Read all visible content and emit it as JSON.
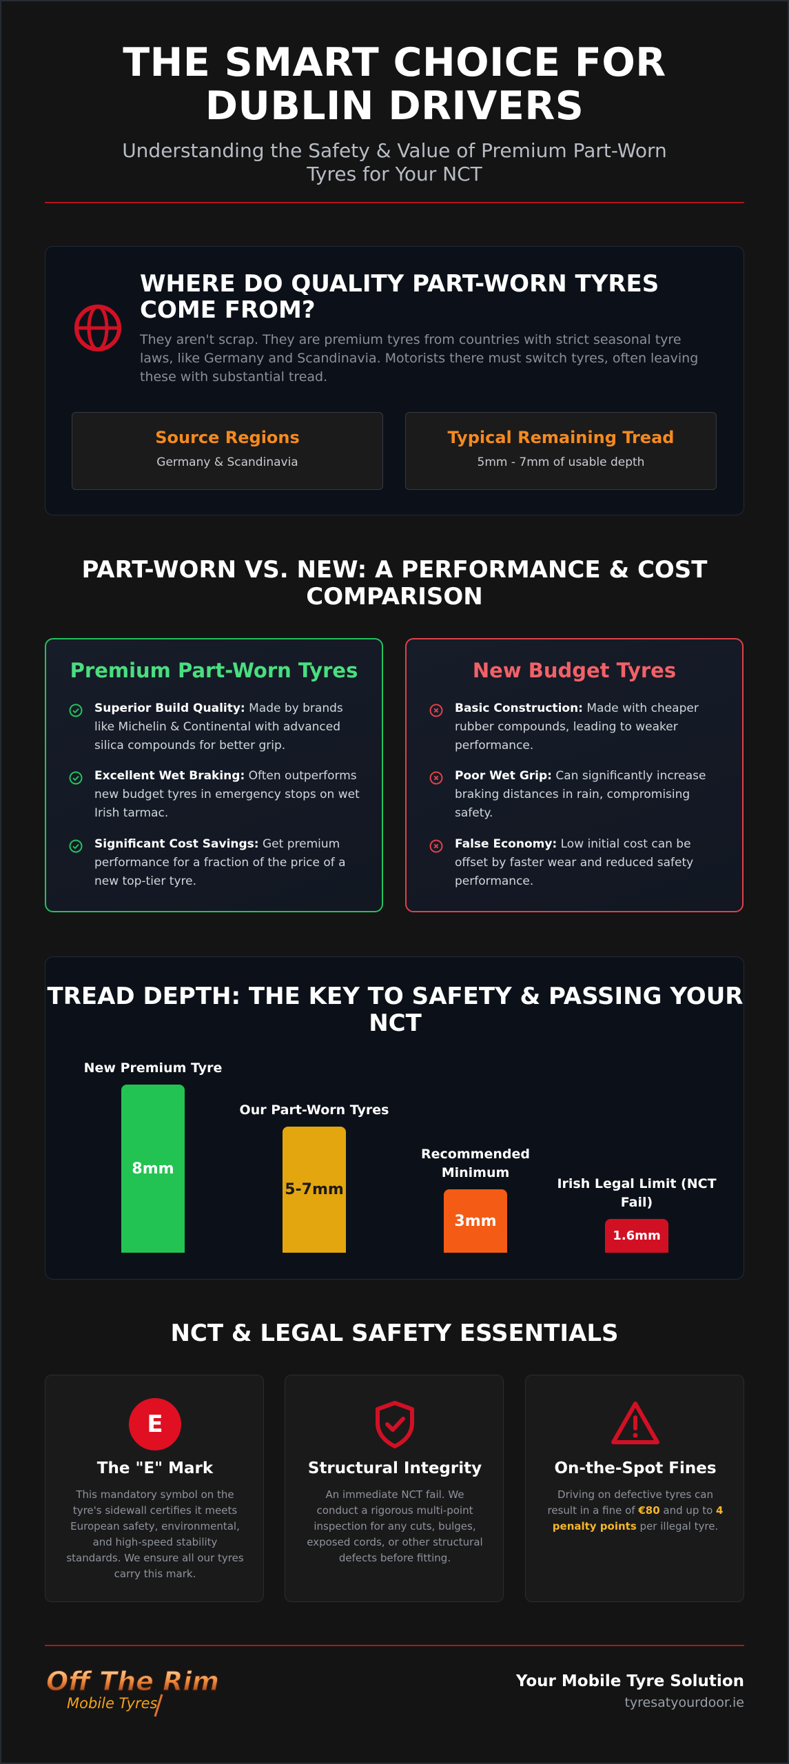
{
  "header": {
    "title": "THE SMART CHOICE FOR DUBLIN DRIVERS",
    "subtitle": "Understanding the Safety & Value of Premium Part-Worn Tyres for Your NCT"
  },
  "source_section": {
    "icon": "globe-icon",
    "title": "WHERE DO QUALITY PART-WORN TYRES COME FROM?",
    "text": "They aren't scrap. They are premium tyres from countries with strict seasonal tyre laws, like Germany and Scandinavia. Motorists there must switch tyres, often leaving these with substantial tread.",
    "stats": [
      {
        "title": "Source Regions",
        "value": "Germany & Scandinavia"
      },
      {
        "title": "Typical Remaining Tread",
        "value": "5mm - 7mm of usable depth"
      }
    ]
  },
  "comparison": {
    "title": "PART-WORN VS. NEW: A PERFORMANCE & COST COMPARISON",
    "part_worn": {
      "title": "Premium Part-Worn Tyres",
      "icon": "check-circle-icon",
      "points": [
        {
          "bold": "Superior Build Quality:",
          "text": " Made by brands like Michelin & Continental with advanced silica compounds for better grip."
        },
        {
          "bold": "Excellent Wet Braking:",
          "text": " Often outperforms new budget tyres in emergency stops on wet Irish tarmac."
        },
        {
          "bold": "Significant Cost Savings:",
          "text": " Get premium performance for a fraction of the price of a new top-tier tyre."
        }
      ]
    },
    "budget": {
      "title": "New Budget Tyres",
      "icon": "x-circle-icon",
      "points": [
        {
          "bold": "Basic Construction:",
          "text": " Made with cheaper rubber compounds, leading to weaker performance."
        },
        {
          "bold": "Poor Wet Grip:",
          "text": " Can significantly increase braking distances in rain, compromising safety."
        },
        {
          "bold": "False Economy:",
          "text": " Low initial cost can be offset by faster wear and reduced safety performance."
        }
      ]
    }
  },
  "tread": {
    "title": "TREAD DEPTH: THE KEY TO SAFETY & PASSING YOUR NCT",
    "bars": [
      {
        "label": "New Premium Tyre",
        "value_label": "8mm",
        "depth_mm": 8,
        "color": "#22c352"
      },
      {
        "label": "Our Part-Worn Tyres",
        "value_label": "5-7mm",
        "depth_mm": 6,
        "color": "#e3a60f"
      },
      {
        "label": "Recommended Minimum",
        "value_label": "3mm",
        "depth_mm": 3,
        "color": "#f45c16"
      },
      {
        "label": "Irish Legal Limit (NCT Fail)",
        "value_label": "1.6mm",
        "depth_mm": 1.6,
        "color": "#d21024"
      }
    ]
  },
  "essentials": {
    "title": "NCT & LEGAL SAFETY ESSENTIALS",
    "cards": [
      {
        "icon": "e-mark-icon",
        "badge": "E",
        "title": "The \"E\" Mark",
        "text": "This mandatory symbol on the tyre's sidewall certifies it meets European safety, environmental, and high-speed stability standards. We ensure all our tyres carry this mark."
      },
      {
        "icon": "shield-check-icon",
        "title": "Structural Integrity",
        "text": "An immediate NCT fail. We conduct a rigorous multi-point inspection for any cuts, bulges, exposed cords, or other structural defects before fitting."
      },
      {
        "icon": "warning-triangle-icon",
        "title": "On-the-Spot Fines",
        "text_pre": "Driving on defective tyres can result in a fine of ",
        "hl1": "€80",
        "text_mid": " and up to ",
        "hl2": "4 penalty points",
        "text_post": " per illegal tyre."
      }
    ]
  },
  "footer": {
    "logo_line1": "Off The Rim",
    "logo_line2": "Mobile Tyres",
    "tagline": "Your Mobile Tyre Solution",
    "url": "tyresatyourdoor.ie"
  },
  "colors": {
    "accent_red": "#d21024",
    "accent_orange": "#f58a1f",
    "good_green": "#22c35e",
    "bad_red": "#e0414a",
    "highlight_yellow": "#f5b62a"
  }
}
